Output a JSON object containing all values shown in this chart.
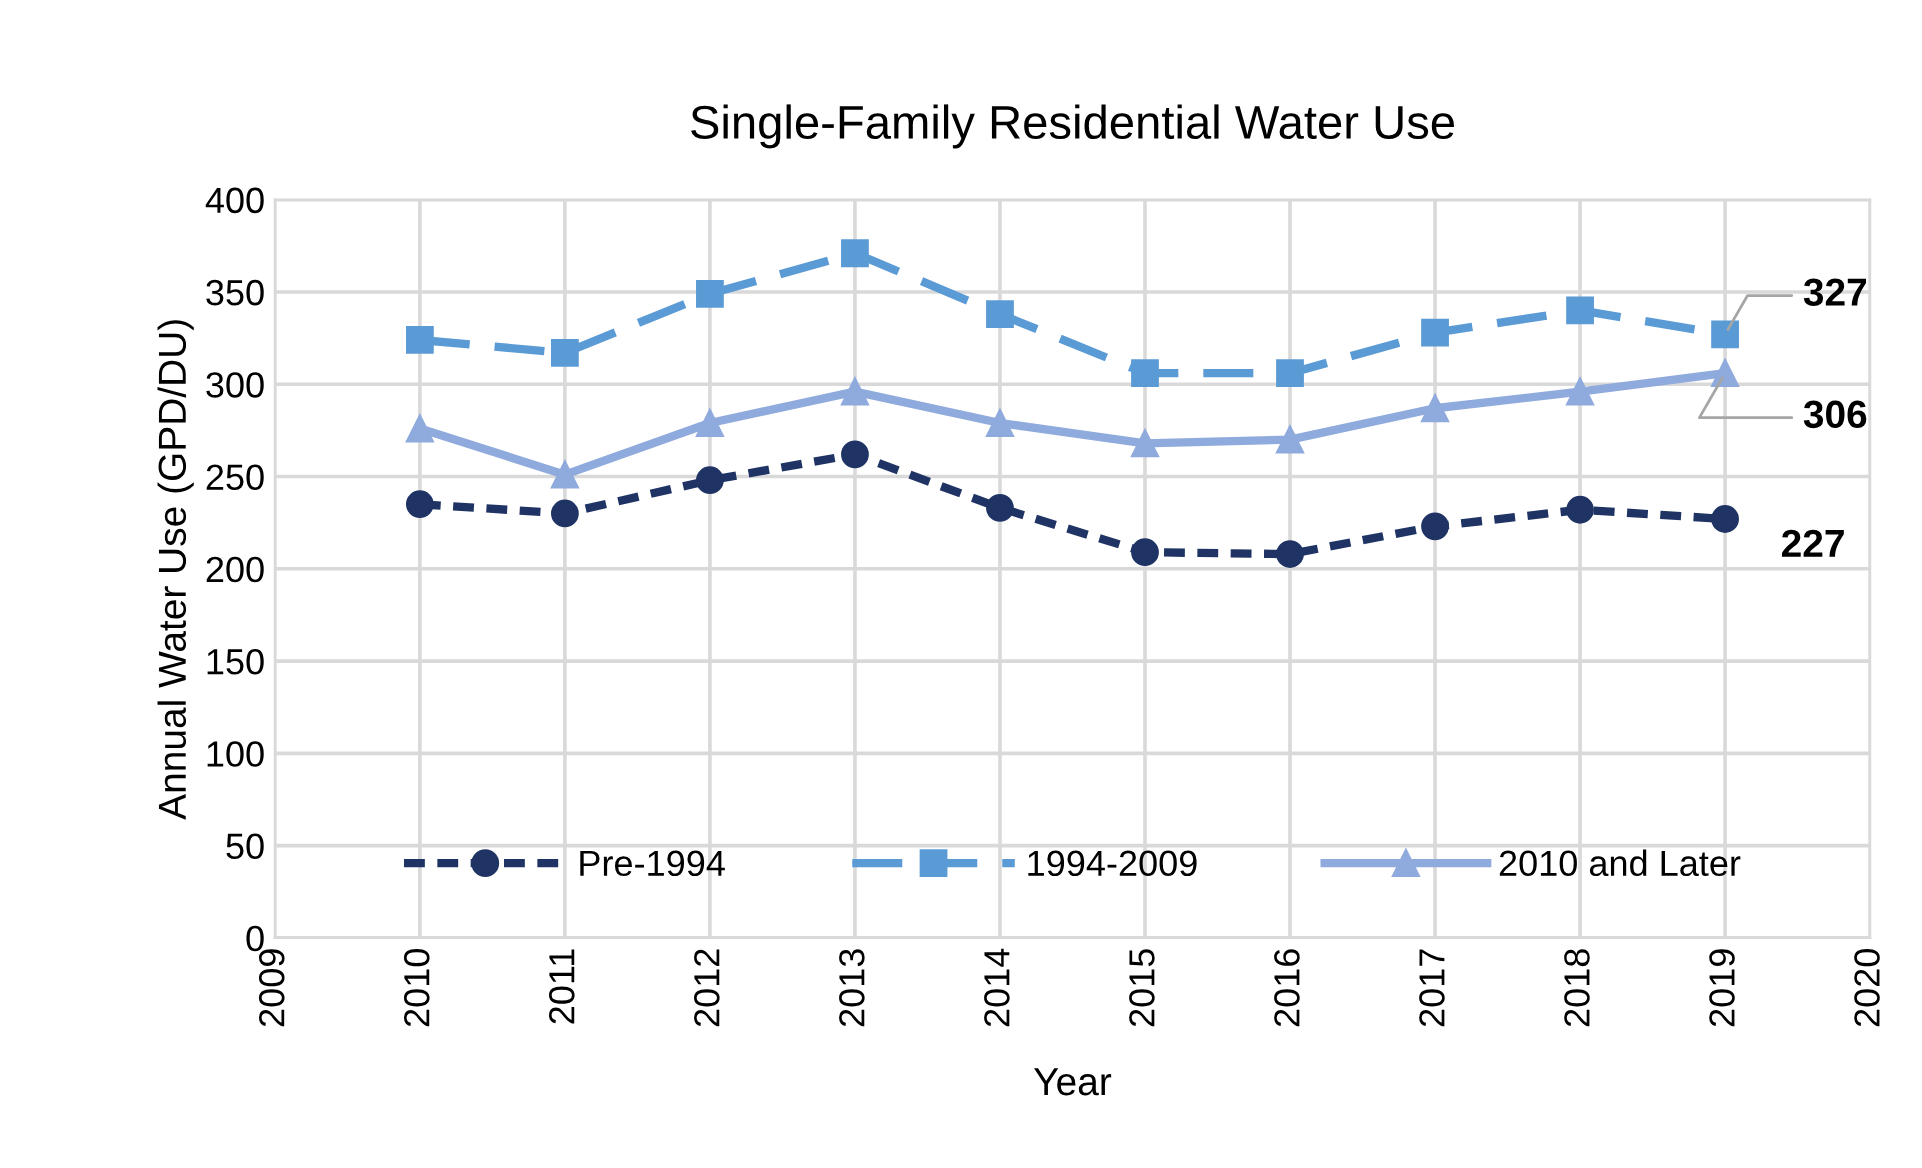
{
  "chart_data": {
    "type": "line",
    "title": "Single-Family Residential Water Use",
    "xlabel": "Year",
    "ylabel": "Annual Water Use (GPD/DU)",
    "x": [
      2010,
      2011,
      2012,
      2013,
      2014,
      2015,
      2016,
      2017,
      2018,
      2019
    ],
    "xlim": [
      2009,
      2020
    ],
    "xticks": [
      2009,
      2010,
      2011,
      2012,
      2013,
      2014,
      2015,
      2016,
      2017,
      2018,
      2019,
      2020
    ],
    "ylim": [
      0,
      400
    ],
    "yticks": [
      0,
      50,
      100,
      150,
      200,
      250,
      300,
      350,
      400
    ],
    "grid": true,
    "legend": "bottom",
    "series": [
      {
        "name": "Pre-1994",
        "color": "#1f3464",
        "marker": "circle",
        "line_style": "dotted",
        "values": [
          235,
          230,
          248,
          262,
          233,
          209,
          208,
          223,
          232,
          227
        ],
        "value_labels": [
          null,
          null,
          null,
          null,
          null,
          null,
          null,
          null,
          null,
          "227"
        ]
      },
      {
        "name": "1994-2009",
        "color": "#5b9bd5",
        "marker": "square",
        "line_style": "dashed",
        "values": [
          324,
          317,
          349,
          371,
          338,
          306,
          306,
          328,
          340,
          327
        ],
        "value_labels": [
          null,
          null,
          null,
          null,
          null,
          null,
          null,
          null,
          null,
          "327"
        ]
      },
      {
        "name": "2010 and Later",
        "color": "#8faadc",
        "marker": "triangle",
        "line_style": "solid",
        "values": [
          276,
          251,
          279,
          296,
          279,
          268,
          270,
          287,
          296,
          306
        ],
        "value_labels": [
          null,
          null,
          null,
          null,
          null,
          null,
          null,
          null,
          null,
          "306"
        ]
      }
    ]
  }
}
